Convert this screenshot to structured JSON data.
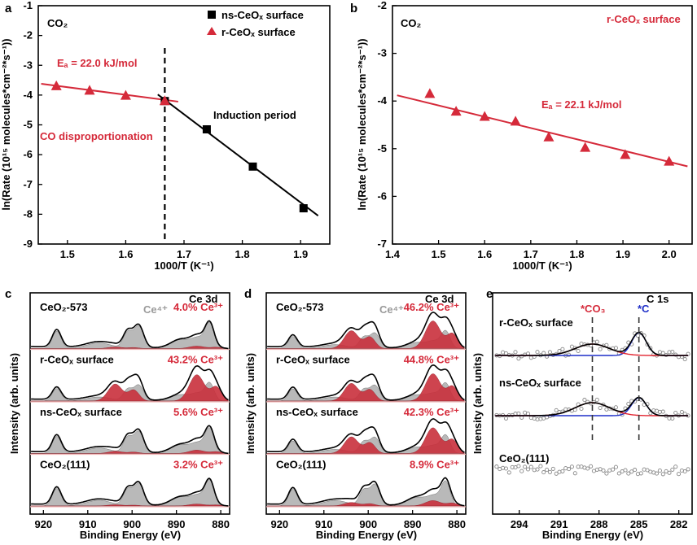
{
  "colors": {
    "red": "#d52a3a",
    "black": "#000000",
    "grey_fill": "#b9b9b9",
    "red_fill": "#c9303c",
    "blue": "#1f2fc8",
    "baseline": "#f0b3b3"
  },
  "panel_labels": [
    "a",
    "b",
    "c",
    "d",
    "e"
  ],
  "panel_a": {
    "title": "CO₂",
    "legend": [
      {
        "label": "ns-CeOₓ surface",
        "marker": "square",
        "color": "#000000"
      },
      {
        "label": "r-CeOₓ surface",
        "marker": "triangle",
        "color": "#d52a3a"
      }
    ],
    "annotations": {
      "ea": "Eₐ = 22.0 kJ/mol",
      "co_disp": "CO disproportionation",
      "induction": "Induction period"
    }
  },
  "panel_b": {
    "title": "CO₂",
    "legend_text": "r-CeOₓ surface",
    "annotations": {
      "ea": "Eₐ = 22.1 kJ/mol"
    }
  },
  "panel_c": {
    "title": "Ce 3d",
    "ce4": "Ce⁴⁺",
    "rows": [
      {
        "sample": "CeO₂-573",
        "pct": "4.0% Ce³⁺"
      },
      {
        "sample": "r-CeOₓ surface",
        "pct": "43.2% Ce³⁺"
      },
      {
        "sample": "ns-CeOₓ surface",
        "pct": "5.6% Ce³⁺"
      },
      {
        "sample": "CeO₂(111)",
        "pct": "3.2% Ce³⁺"
      }
    ]
  },
  "panel_d": {
    "title": "Ce 3d",
    "ce4": "Ce⁴⁺",
    "rows": [
      {
        "sample": "CeO₂-573",
        "pct": "46.2% Ce³⁺"
      },
      {
        "sample": "r-CeOₓ surface",
        "pct": "44.8% Ce³⁺"
      },
      {
        "sample": "ns-CeOₓ surface",
        "pct": "42.3% Ce³⁺"
      },
      {
        "sample": "CeO₂(111)",
        "pct": "8.9% Ce³⁺"
      }
    ]
  },
  "panel_e": {
    "title": "C 1s",
    "co3": "*CO₃",
    "c": "*C",
    "rows": [
      {
        "sample": "r-CeOₓ surface"
      },
      {
        "sample": "ns-CeOₓ surface"
      },
      {
        "sample": "CeO₂(111)"
      }
    ]
  },
  "chart_data": [
    {
      "panel": "a",
      "type": "scatter",
      "xlabel": "1000/T (K⁻¹)",
      "ylabel": "ln(Rate (10¹⁵ molecules*cm⁻²*s⁻¹))",
      "xlim": [
        1.45,
        1.95
      ],
      "ylim": [
        -9,
        -1
      ],
      "xticks": [
        1.5,
        1.6,
        1.7,
        1.8,
        1.9
      ],
      "yticks": [
        -9,
        -8,
        -7,
        -6,
        -5,
        -4,
        -3,
        -2,
        -1
      ],
      "series": [
        {
          "name": "ns-CeOₓ surface",
          "marker": "square",
          "x": [
            1.667,
            1.739,
            1.818,
            1.905
          ],
          "y": [
            -4.2,
            -5.15,
            -6.4,
            -7.8
          ]
        },
        {
          "name": "r-CeOₓ surface",
          "marker": "triangle",
          "x": [
            1.481,
            1.538,
            1.6,
            1.667
          ],
          "y": [
            -3.7,
            -3.85,
            -4.02,
            -4.2
          ]
        }
      ],
      "fits": [
        {
          "color": "#d52a3a",
          "x": [
            1.455,
            1.69
          ],
          "y": [
            -3.62,
            -4.22
          ]
        },
        {
          "color": "#000000",
          "x": [
            1.655,
            1.93
          ],
          "y": [
            -3.98,
            -8.05
          ]
        }
      ],
      "vline": 1.667
    },
    {
      "panel": "b",
      "type": "scatter",
      "xlabel": "1000/T (K⁻¹)",
      "ylabel": "ln(Rate (10¹⁵ molecules*cm⁻²*s⁻¹))",
      "xlim": [
        1.4,
        2.05
      ],
      "ylim": [
        -7,
        -2
      ],
      "xticks": [
        1.4,
        1.5,
        1.6,
        1.7,
        1.8,
        1.9,
        2.0
      ],
      "yticks": [
        -7,
        -6,
        -5,
        -4,
        -3,
        -2
      ],
      "series": [
        {
          "name": "r-CeOₓ surface",
          "marker": "triangle",
          "x": [
            1.481,
            1.538,
            1.6,
            1.667,
            1.739,
            1.818,
            1.905,
            2.0
          ],
          "y": [
            -3.85,
            -4.22,
            -4.33,
            -4.43,
            -4.76,
            -4.98,
            -5.13,
            -5.27
          ]
        }
      ],
      "fits": [
        {
          "color": "#d52a3a",
          "x": [
            1.41,
            2.04
          ],
          "y": [
            -3.88,
            -5.37
          ]
        }
      ]
    },
    {
      "panel": "c",
      "type": "line",
      "xlabel": "Binding Energy (eV)",
      "ylabel": "Intensity (arb. units)",
      "xlim": [
        923,
        878
      ],
      "xticks": [
        920,
        910,
        900,
        890,
        880
      ]
    },
    {
      "panel": "d",
      "type": "line",
      "xlabel": "Binding Energy (eV)",
      "ylabel": "Intensity (arb. units)",
      "xlim": [
        923,
        878
      ],
      "xticks": [
        920,
        910,
        900,
        890,
        880
      ]
    },
    {
      "panel": "e",
      "type": "line",
      "xlabel": "Binding Energy (eV)",
      "ylabel": "Intensity (arb. units)",
      "xlim": [
        296,
        281
      ],
      "xticks": [
        294,
        291,
        288,
        285,
        282
      ],
      "peaks": [
        {
          "label": "*CO₃",
          "center": 288.5
        },
        {
          "label": "*C",
          "center": 285.0
        }
      ]
    }
  ]
}
